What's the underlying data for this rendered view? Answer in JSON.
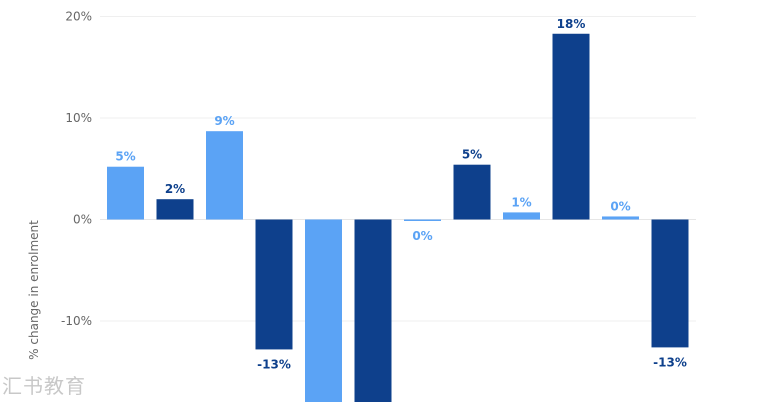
{
  "chart_data": {
    "type": "bar",
    "ylabel": "% change in enrolment",
    "ylim": [
      -18,
      20
    ],
    "yticks": [
      {
        "value": 20,
        "label": "20%"
      },
      {
        "value": 10,
        "label": "10%"
      },
      {
        "value": 0,
        "label": "0%"
      },
      {
        "value": -10,
        "label": "-10%"
      }
    ],
    "grid": true,
    "bars": [
      {
        "value": 5.2,
        "label": "5%",
        "color": "#5ba3f5"
      },
      {
        "value": 2.0,
        "label": "2%",
        "color": "#0e408c"
      },
      {
        "value": 8.7,
        "label": "9%",
        "color": "#5ba3f5"
      },
      {
        "value": -12.8,
        "label": "-13%",
        "color": "#0e408c"
      },
      {
        "value": -18.0,
        "label": "",
        "color": "#5ba3f5"
      },
      {
        "value": -18.0,
        "label": "",
        "color": "#0e408c"
      },
      {
        "value": -0.1,
        "label": "0%",
        "color": "#5ba3f5"
      },
      {
        "value": 5.4,
        "label": "5%",
        "color": "#0e408c"
      },
      {
        "value": 0.7,
        "label": "1%",
        "color": "#5ba3f5"
      },
      {
        "value": 18.3,
        "label": "18%",
        "color": "#0e408c"
      },
      {
        "value": 0.3,
        "label": "0%",
        "color": "#5ba3f5"
      },
      {
        "value": -12.6,
        "label": "-13%",
        "color": "#0e408c"
      }
    ]
  },
  "watermark": "汇书教育"
}
